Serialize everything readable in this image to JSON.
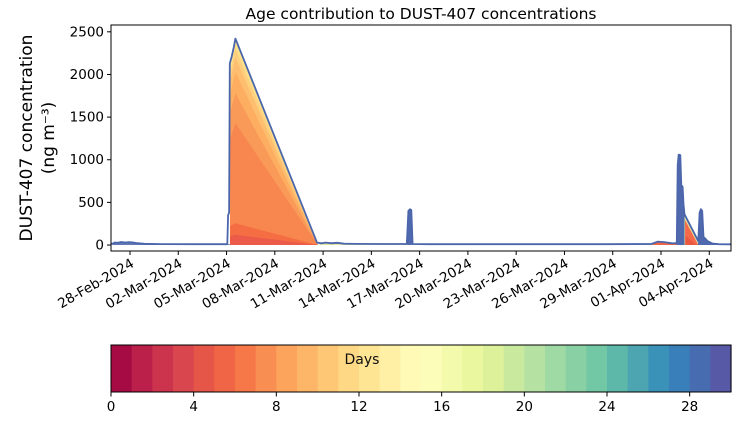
{
  "chart": {
    "title": "Age contribution to DUST-407 concentrations",
    "ylabel_line1": "DUST-407 concentration",
    "ylabel_line2": "(ng m⁻³)"
  },
  "chart_data": {
    "type": "area",
    "title": "Age contribution to DUST-407 concentrations",
    "ylabel": "DUST-407 concentration (ng m⁻³)",
    "x_unit": "days since 28-Feb-2024",
    "xlim": [
      -1.18,
      37.35
    ],
    "ylim": [
      -70,
      2580
    ],
    "y_ticks": [
      0,
      500,
      1000,
      1500,
      2000,
      2500
    ],
    "x_ticks": [
      {
        "day": 0,
        "label": "28-Feb-2024"
      },
      {
        "day": 3,
        "label": "02-Mar-2024"
      },
      {
        "day": 6,
        "label": "05-Mar-2024"
      },
      {
        "day": 9,
        "label": "08-Mar-2024"
      },
      {
        "day": 12,
        "label": "11-Mar-2024"
      },
      {
        "day": 15,
        "label": "14-Mar-2024"
      },
      {
        "day": 18,
        "label": "17-Mar-2024"
      },
      {
        "day": 21,
        "label": "20-Mar-2024"
      },
      {
        "day": 24,
        "label": "23-Mar-2024"
      },
      {
        "day": 27,
        "label": "26-Mar-2024"
      },
      {
        "day": 30,
        "label": "29-Mar-2024"
      },
      {
        "day": 33,
        "label": "01-Apr-2024"
      },
      {
        "day": 36,
        "label": "04-Apr-2024"
      }
    ],
    "peaks": [
      {
        "date": "05-Mar-2024",
        "value_ng_m3": 2420
      },
      {
        "date": "16-Mar-2024",
        "value_ng_m3": 420
      },
      {
        "date": "02-Apr-2024",
        "value_ng_m3": 1060
      },
      {
        "date": "03-Apr-2024",
        "value_ng_m3": 420
      }
    ],
    "line_color": "#4c66ac",
    "total_line": [
      [
        -1.18,
        15
      ],
      [
        -1.05,
        18
      ],
      [
        -0.95,
        30
      ],
      [
        -0.75,
        26
      ],
      [
        -0.55,
        36
      ],
      [
        -0.3,
        30
      ],
      [
        -0.05,
        34
      ],
      [
        0.2,
        30
      ],
      [
        0.45,
        22
      ],
      [
        0.9,
        14
      ],
      [
        2,
        11
      ],
      [
        4,
        10
      ],
      [
        6.05,
        10
      ],
      [
        6.1,
        350
      ],
      [
        6.16,
        380
      ],
      [
        6.2,
        2130
      ],
      [
        6.32,
        2210
      ],
      [
        6.45,
        2320
      ],
      [
        6.55,
        2420
      ],
      [
        11.62,
        28
      ],
      [
        11.9,
        20
      ],
      [
        12.15,
        28
      ],
      [
        12.5,
        22
      ],
      [
        12.9,
        26
      ],
      [
        13.3,
        16
      ],
      [
        14,
        13
      ],
      [
        15.5,
        12
      ],
      [
        17.2,
        12
      ],
      [
        17.3,
        400
      ],
      [
        17.4,
        420
      ],
      [
        17.48,
        410
      ],
      [
        17.56,
        12
      ],
      [
        18.5,
        10
      ],
      [
        24,
        10
      ],
      [
        29.5,
        10
      ],
      [
        32.4,
        12
      ],
      [
        32.8,
        40
      ],
      [
        33.2,
        34
      ],
      [
        33.7,
        20
      ],
      [
        33.9,
        22
      ],
      [
        33.98,
        30
      ],
      [
        34.04,
        940
      ],
      [
        34.1,
        1060
      ],
      [
        34.2,
        1055
      ],
      [
        34.26,
        700
      ],
      [
        34.34,
        685
      ],
      [
        34.4,
        480
      ],
      [
        34.46,
        360
      ],
      [
        35.32,
        45
      ],
      [
        35.4,
        380
      ],
      [
        35.48,
        420
      ],
      [
        35.56,
        400
      ],
      [
        35.64,
        95
      ],
      [
        35.75,
        75
      ],
      [
        35.9,
        45
      ],
      [
        36.2,
        18
      ],
      [
        36.6,
        10
      ],
      [
        37.3,
        9
      ]
    ],
    "bands": [
      {
        "name": "baseline-left",
        "age_days": "28-30",
        "color": "#6379b4",
        "points": [
          [
            -1.1,
            0
          ],
          [
            -1.05,
            16
          ],
          [
            -0.95,
            28
          ],
          [
            -0.75,
            24
          ],
          [
            -0.55,
            34
          ],
          [
            -0.3,
            28
          ],
          [
            -0.05,
            32
          ],
          [
            0.2,
            28
          ],
          [
            0.45,
            20
          ],
          [
            0.9,
            12
          ],
          [
            2,
            9
          ],
          [
            4,
            8
          ],
          [
            6.22,
            8
          ],
          [
            6.22,
            0
          ]
        ]
      },
      {
        "name": "main-age-13",
        "age_days": 13,
        "color": "#ffea9c",
        "points": [
          [
            6.22,
            0
          ],
          [
            6.22,
            2110
          ],
          [
            6.55,
            2420
          ],
          [
            11.68,
            0
          ]
        ]
      },
      {
        "name": "main-age-12",
        "age_days": 12,
        "color": "#fee08b",
        "points": [
          [
            6.22,
            0
          ],
          [
            6.22,
            2084
          ],
          [
            6.55,
            2390
          ],
          [
            11.68,
            0
          ]
        ]
      },
      {
        "name": "main-age-11",
        "age_days": 11,
        "color": "#fecf7d",
        "points": [
          [
            6.22,
            0
          ],
          [
            6.22,
            2014
          ],
          [
            6.55,
            2310
          ],
          [
            11.68,
            0
          ]
        ]
      },
      {
        "name": "main-age-10",
        "age_days": 10,
        "color": "#fdbe6f",
        "points": [
          [
            6.22,
            0
          ],
          [
            6.22,
            1918
          ],
          [
            6.55,
            2200
          ],
          [
            11.68,
            0
          ]
        ]
      },
      {
        "name": "main-age-9",
        "age_days": 9,
        "color": "#fdae61",
        "points": [
          [
            6.22,
            0
          ],
          [
            6.22,
            1770
          ],
          [
            6.55,
            2030
          ],
          [
            11.68,
            0
          ]
        ]
      },
      {
        "name": "main-age-8",
        "age_days": 8,
        "color": "#fa9a59",
        "points": [
          [
            6.22,
            0
          ],
          [
            6.22,
            1552
          ],
          [
            6.55,
            1780
          ],
          [
            11.68,
            0
          ]
        ]
      },
      {
        "name": "main-age-7",
        "age_days": 7,
        "color": "#f8874f",
        "points": [
          [
            6.22,
            0
          ],
          [
            6.22,
            1247
          ],
          [
            6.55,
            1430
          ],
          [
            11.68,
            0
          ]
        ]
      },
      {
        "name": "main-age-6",
        "age_days": 6,
        "color": "#f46d43",
        "points": [
          [
            6.22,
            0
          ],
          [
            6.22,
            222
          ],
          [
            6.55,
            255
          ],
          [
            11.68,
            0
          ]
        ]
      },
      {
        "name": "main-age-5",
        "age_days": 5,
        "color": "#ec5a49",
        "points": [
          [
            6.22,
            0
          ],
          [
            6.22,
            105
          ],
          [
            6.55,
            120
          ],
          [
            11.68,
            0
          ]
        ]
      },
      {
        "name": "baseline-mid",
        "age_days": "12-14",
        "color": "#dfe29b",
        "points": [
          [
            11.68,
            0
          ],
          [
            11.9,
            16
          ],
          [
            12.15,
            24
          ],
          [
            12.5,
            18
          ],
          [
            12.9,
            22
          ],
          [
            13.3,
            12
          ],
          [
            14,
            10
          ],
          [
            15.5,
            9
          ],
          [
            17.32,
            9
          ],
          [
            17.32,
            0
          ]
        ]
      },
      {
        "name": "spike-16mar",
        "age_days": "28-30",
        "color": "#5068ae",
        "points": [
          [
            17.24,
            0
          ],
          [
            17.3,
            396
          ],
          [
            17.4,
            418
          ],
          [
            17.48,
            406
          ],
          [
            17.56,
            0
          ]
        ]
      },
      {
        "name": "baseline-teal",
        "age_days": "20-24",
        "color": "#79b4c5",
        "points": [
          [
            17.5,
            0
          ],
          [
            17.5,
            8
          ],
          [
            29.3,
            8
          ],
          [
            29.3,
            0
          ]
        ]
      },
      {
        "name": "baseline-green",
        "age_days": "16-20",
        "color": "#a2d6a1",
        "points": [
          [
            29.3,
            0
          ],
          [
            29.3,
            8
          ],
          [
            32.35,
            9
          ],
          [
            32.35,
            0
          ]
        ]
      },
      {
        "name": "right-bump",
        "age_days": "4-6",
        "color": "#ee6345",
        "points": [
          [
            32.42,
            0
          ],
          [
            32.8,
            36
          ],
          [
            33.2,
            30
          ],
          [
            33.7,
            16
          ],
          [
            33.96,
            18
          ],
          [
            33.96,
            0
          ]
        ]
      },
      {
        "name": "right-spike-1",
        "age_days": "28-30",
        "color": "#5068ae",
        "points": [
          [
            33.96,
            0
          ],
          [
            34.02,
            930
          ],
          [
            34.08,
            1055
          ],
          [
            34.2,
            1050
          ],
          [
            34.26,
            695
          ],
          [
            34.34,
            680
          ],
          [
            34.4,
            475
          ],
          [
            34.46,
            358
          ],
          [
            34.52,
            80
          ],
          [
            34.62,
            0
          ]
        ]
      },
      {
        "name": "right-age-green",
        "age_days": "15-17",
        "color": "#bce3a0",
        "points": [
          [
            34.46,
            0
          ],
          [
            34.46,
            355
          ],
          [
            35.36,
            0
          ]
        ]
      },
      {
        "name": "right-age-yellow",
        "age_days": "12-13",
        "color": "#fee393",
        "points": [
          [
            34.48,
            0
          ],
          [
            34.48,
            328
          ],
          [
            35.34,
            0
          ]
        ]
      },
      {
        "name": "right-age-orange",
        "age_days": "6-8",
        "color": "#f3694a",
        "points": [
          [
            34.5,
            0
          ],
          [
            34.5,
            292
          ],
          [
            35.32,
            0
          ]
        ]
      },
      {
        "name": "right-age-red",
        "age_days": "4-5",
        "color": "#ea5840",
        "points": [
          [
            34.52,
            0
          ],
          [
            34.52,
            112
          ],
          [
            35.18,
            0
          ]
        ]
      },
      {
        "name": "right-spike-2",
        "age_days": "28-30",
        "color": "#5068ae",
        "points": [
          [
            35.3,
            0
          ],
          [
            35.38,
            375
          ],
          [
            35.46,
            418
          ],
          [
            35.54,
            395
          ],
          [
            35.62,
            90
          ],
          [
            35.75,
            72
          ],
          [
            35.9,
            42
          ],
          [
            36.2,
            14
          ],
          [
            36.55,
            6
          ],
          [
            36.7,
            0
          ]
        ]
      }
    ],
    "colorbar": {
      "label": "Days",
      "min": 0,
      "max": 30,
      "segments": 30,
      "ticks": [
        0,
        4,
        8,
        12,
        16,
        20,
        24,
        28
      ],
      "anchors": [
        "#9e0142",
        "#d53e4f",
        "#f46d43",
        "#fdae61",
        "#fee08b",
        "#ffffbf",
        "#e6f598",
        "#abdda4",
        "#66c2a5",
        "#3288bd",
        "#5e4fa2"
      ]
    }
  }
}
